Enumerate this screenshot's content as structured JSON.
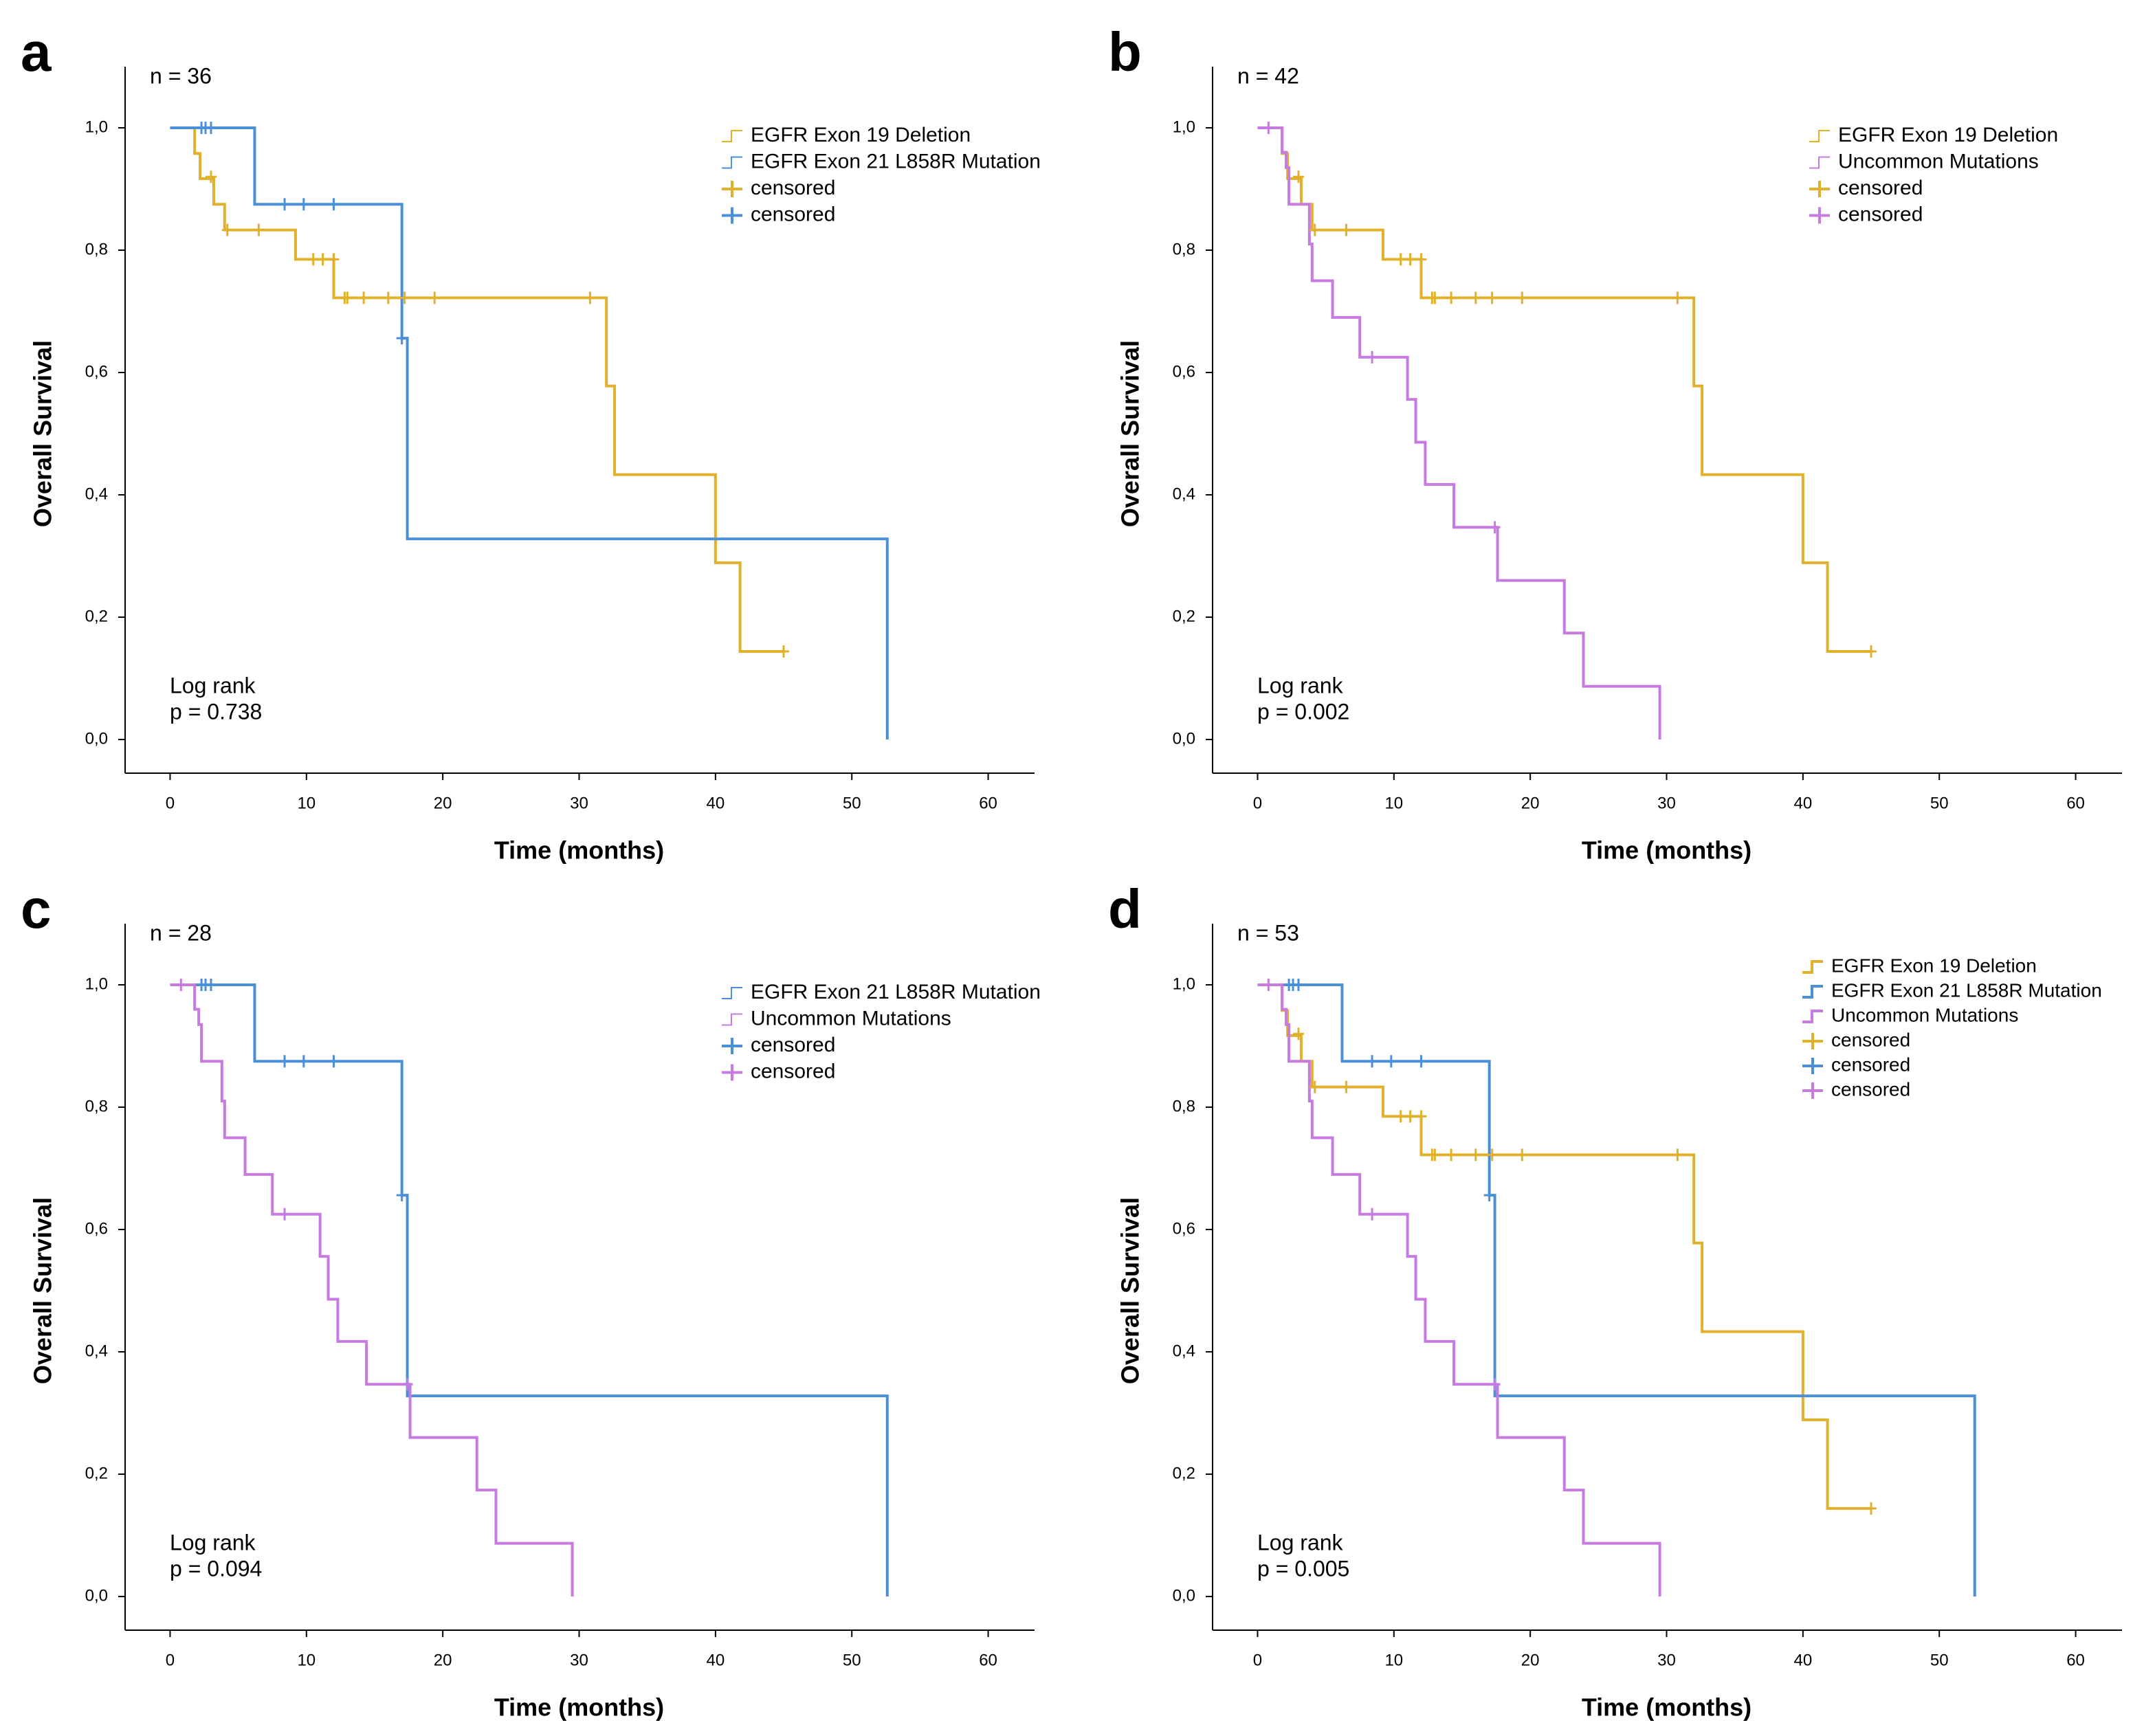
{
  "chart_data": [
    {
      "type": "step",
      "panel_label": "a",
      "title": "n = 36",
      "xlabel": "Time (months)",
      "ylabel": "Overall Survival",
      "annotations": [
        "Log rank",
        "p = 0.738"
      ],
      "legend": "upper right",
      "xlim": [
        -3.3,
        63.4
      ],
      "ylim": [
        -0.055,
        1.1
      ],
      "xticks": [
        0,
        10,
        20,
        30,
        40,
        50,
        60
      ],
      "yticks": [
        {
          "value": 0,
          "label": "0,0"
        },
        {
          "value": 0.2,
          "label": "0,2"
        },
        {
          "value": 0.4,
          "label": "0,4"
        },
        {
          "value": 0.6,
          "label": "0,6"
        },
        {
          "value": 0.8,
          "label": "0,8"
        },
        {
          "value": 1,
          "label": "1,0"
        }
      ],
      "series": [
        {
          "name": "EGFR Exon 19 Deletion",
          "color": "#e1b12c",
          "x": [
            0,
            1.8,
            2.2,
            3.2,
            4,
            9.2,
            12,
            32,
            32.6,
            40,
            41.8,
            45
          ],
          "values": [
            1,
            0.958,
            0.917,
            0.875,
            0.833,
            0.785,
            0.722,
            0.578,
            0.433,
            0.289,
            0.144,
            0.144
          ]
        },
        {
          "name": "EGFR Exon 21 L858R Mutation",
          "color": "#4a90d9",
          "x": [
            0,
            6.2,
            17,
            17.4,
            52.6
          ],
          "values": [
            1,
            0.875,
            0.656,
            0.328,
            0
          ]
        },
        {
          "name": "censored",
          "color": "#e1b12c",
          "marker": "+",
          "x": [
            3,
            4.2,
            6.5,
            10.5,
            11.2,
            12,
            12.8,
            13,
            14.2,
            16,
            17.2,
            19.4,
            30.8,
            45
          ],
          "values": [
            0.92,
            0.833,
            0.833,
            0.785,
            0.785,
            0.785,
            0.722,
            0.722,
            0.722,
            0.722,
            0.722,
            0.722,
            0.722,
            0.144
          ]
        },
        {
          "name": "censored",
          "color": "#4a90d9",
          "marker": "+",
          "x": [
            2.3,
            2.6,
            3,
            8.4,
            9.8,
            12,
            17
          ],
          "values": [
            1,
            1,
            1,
            0.875,
            0.875,
            0.875,
            0.656
          ]
        }
      ]
    },
    {
      "type": "step",
      "panel_label": "b",
      "title": "n = 42",
      "xlabel": "Time (months)",
      "ylabel": "Overall Survival",
      "annotations": [
        "Log rank",
        "p = 0.002"
      ],
      "legend": "upper right",
      "xlim": [
        -3.3,
        63.4
      ],
      "ylim": [
        -0.055,
        1.1
      ],
      "xticks": [
        0,
        10,
        20,
        30,
        40,
        50,
        60
      ],
      "yticks": [
        {
          "value": 0,
          "label": "0,0"
        },
        {
          "value": 0.2,
          "label": "0,2"
        },
        {
          "value": 0.4,
          "label": "0,4"
        },
        {
          "value": 0.6,
          "label": "0,6"
        },
        {
          "value": 0.8,
          "label": "0,8"
        },
        {
          "value": 1,
          "label": "1,0"
        }
      ],
      "series": [
        {
          "name": "EGFR Exon 19 Deletion",
          "color": "#e1b12c",
          "x": [
            0,
            1.8,
            2.2,
            3.2,
            4,
            9.2,
            12,
            32,
            32.6,
            40,
            41.8,
            45
          ],
          "values": [
            1,
            0.958,
            0.917,
            0.875,
            0.833,
            0.785,
            0.722,
            0.578,
            0.433,
            0.289,
            0.144,
            0.144
          ]
        },
        {
          "name": "Uncommon Mutations",
          "color": "#c77ae0",
          "x": [
            0,
            1.8,
            2.1,
            2.3,
            3.8,
            4,
            5.5,
            7.5,
            11,
            11.6,
            12.3,
            14.4,
            17.6,
            22.5,
            23.9,
            29.5
          ],
          "values": [
            1,
            0.96,
            0.935,
            0.875,
            0.81,
            0.75,
            0.69,
            0.625,
            0.556,
            0.486,
            0.417,
            0.347,
            0.26,
            0.174,
            0.087,
            0
          ]
        },
        {
          "name": "censored",
          "color": "#e1b12c",
          "marker": "+",
          "x": [
            3,
            4.2,
            6.5,
            10.5,
            11.2,
            12,
            12.8,
            13,
            14.2,
            16,
            17.2,
            19.4,
            30.8,
            45
          ],
          "values": [
            0.92,
            0.833,
            0.833,
            0.785,
            0.785,
            0.785,
            0.722,
            0.722,
            0.722,
            0.722,
            0.722,
            0.722,
            0.722,
            0.144
          ]
        },
        {
          "name": "censored",
          "color": "#c77ae0",
          "marker": "+",
          "x": [
            0.8,
            8.4,
            17.4
          ],
          "values": [
            1,
            0.625,
            0.347
          ]
        }
      ]
    },
    {
      "type": "step",
      "panel_label": "c",
      "title": "n = 28",
      "xlabel": "Time (months)",
      "ylabel": "Overall Survival",
      "annotations": [
        "Log rank",
        "p = 0.094"
      ],
      "legend": "upper right",
      "xlim": [
        -3.3,
        63.4
      ],
      "ylim": [
        -0.055,
        1.1
      ],
      "xticks": [
        0,
        10,
        20,
        30,
        40,
        50,
        60
      ],
      "yticks": [
        {
          "value": 0,
          "label": "0,0"
        },
        {
          "value": 0.2,
          "label": "0,2"
        },
        {
          "value": 0.4,
          "label": "0,4"
        },
        {
          "value": 0.6,
          "label": "0,6"
        },
        {
          "value": 0.8,
          "label": "0,8"
        },
        {
          "value": 1,
          "label": "1,0"
        }
      ],
      "series": [
        {
          "name": "EGFR Exon 21 L858R Mutation",
          "color": "#4a90d9",
          "x": [
            0,
            6.2,
            17,
            17.4,
            52.6
          ],
          "values": [
            1,
            0.875,
            0.656,
            0.328,
            0
          ]
        },
        {
          "name": "Uncommon Mutations",
          "color": "#c77ae0",
          "x": [
            0,
            1.8,
            2.1,
            2.3,
            3.8,
            4,
            5.5,
            7.5,
            11,
            11.6,
            12.3,
            14.4,
            17.6,
            22.5,
            23.9,
            29.5
          ],
          "values": [
            1,
            0.96,
            0.935,
            0.875,
            0.81,
            0.75,
            0.69,
            0.625,
            0.556,
            0.486,
            0.417,
            0.347,
            0.26,
            0.174,
            0.087,
            0
          ]
        },
        {
          "name": "censored",
          "color": "#4a90d9",
          "marker": "+",
          "x": [
            2.3,
            2.6,
            3,
            8.4,
            9.8,
            12,
            17
          ],
          "values": [
            1,
            1,
            1,
            0.875,
            0.875,
            0.875,
            0.656
          ]
        },
        {
          "name": "censored",
          "color": "#c77ae0",
          "marker": "+",
          "x": [
            0.8,
            8.4,
            17.4
          ],
          "values": [
            1,
            0.625,
            0.347
          ]
        }
      ]
    },
    {
      "type": "step",
      "panel_label": "d",
      "title": "n = 53",
      "xlabel": "Time (months)",
      "ylabel": "Overall Survival",
      "annotations": [
        "Log rank",
        "p = 0.005"
      ],
      "legend": "upper right",
      "xlim": [
        -3.3,
        63.4
      ],
      "ylim": [
        -0.055,
        1.1
      ],
      "xticks": [
        0,
        10,
        20,
        30,
        40,
        50,
        60
      ],
      "yticks": [
        {
          "value": 0,
          "label": "0,0"
        },
        {
          "value": 0.2,
          "label": "0,2"
        },
        {
          "value": 0.4,
          "label": "0,4"
        },
        {
          "value": 0.6,
          "label": "0,6"
        },
        {
          "value": 0.8,
          "label": "0,8"
        },
        {
          "value": 1,
          "label": "1,0"
        }
      ],
      "series": [
        {
          "name": "EGFR Exon 19 Deletion",
          "color": "#e1b12c",
          "x": [
            0,
            1.8,
            2.2,
            3.2,
            4,
            9.2,
            12,
            32,
            32.6,
            40,
            41.8,
            45
          ],
          "values": [
            1,
            0.958,
            0.917,
            0.875,
            0.833,
            0.785,
            0.722,
            0.578,
            0.433,
            0.289,
            0.144,
            0.144
          ]
        },
        {
          "name": "EGFR Exon 21 L858R Mutation",
          "color": "#4a90d9",
          "x": [
            0,
            6.2,
            17,
            17.4,
            52.6
          ],
          "values": [
            1,
            0.875,
            0.656,
            0.328,
            0
          ]
        },
        {
          "name": "Uncommon Mutations",
          "color": "#c77ae0",
          "x": [
            0,
            1.8,
            2.1,
            2.3,
            3.8,
            4,
            5.5,
            7.5,
            11,
            11.6,
            12.3,
            14.4,
            17.6,
            22.5,
            23.9,
            29.5
          ],
          "values": [
            1,
            0.96,
            0.935,
            0.875,
            0.81,
            0.75,
            0.69,
            0.625,
            0.556,
            0.486,
            0.417,
            0.347,
            0.26,
            0.174,
            0.087,
            0
          ]
        },
        {
          "name": "censored",
          "color": "#e1b12c",
          "marker": "+",
          "x": [
            3,
            4.2,
            6.5,
            10.5,
            11.2,
            12,
            12.8,
            13,
            14.2,
            16,
            17.2,
            19.4,
            30.8,
            45
          ],
          "values": [
            0.92,
            0.833,
            0.833,
            0.785,
            0.785,
            0.785,
            0.722,
            0.722,
            0.722,
            0.722,
            0.722,
            0.722,
            0.722,
            0.144
          ]
        },
        {
          "name": "censored",
          "color": "#4a90d9",
          "marker": "+",
          "x": [
            2.3,
            2.6,
            3,
            8.4,
            9.8,
            12,
            17
          ],
          "values": [
            1,
            1,
            1,
            0.875,
            0.875,
            0.875,
            0.656
          ]
        },
        {
          "name": "censored",
          "color": "#c77ae0",
          "marker": "+",
          "x": [
            0.8,
            8.4,
            17.4
          ],
          "values": [
            1,
            0.625,
            0.347
          ]
        }
      ]
    }
  ]
}
